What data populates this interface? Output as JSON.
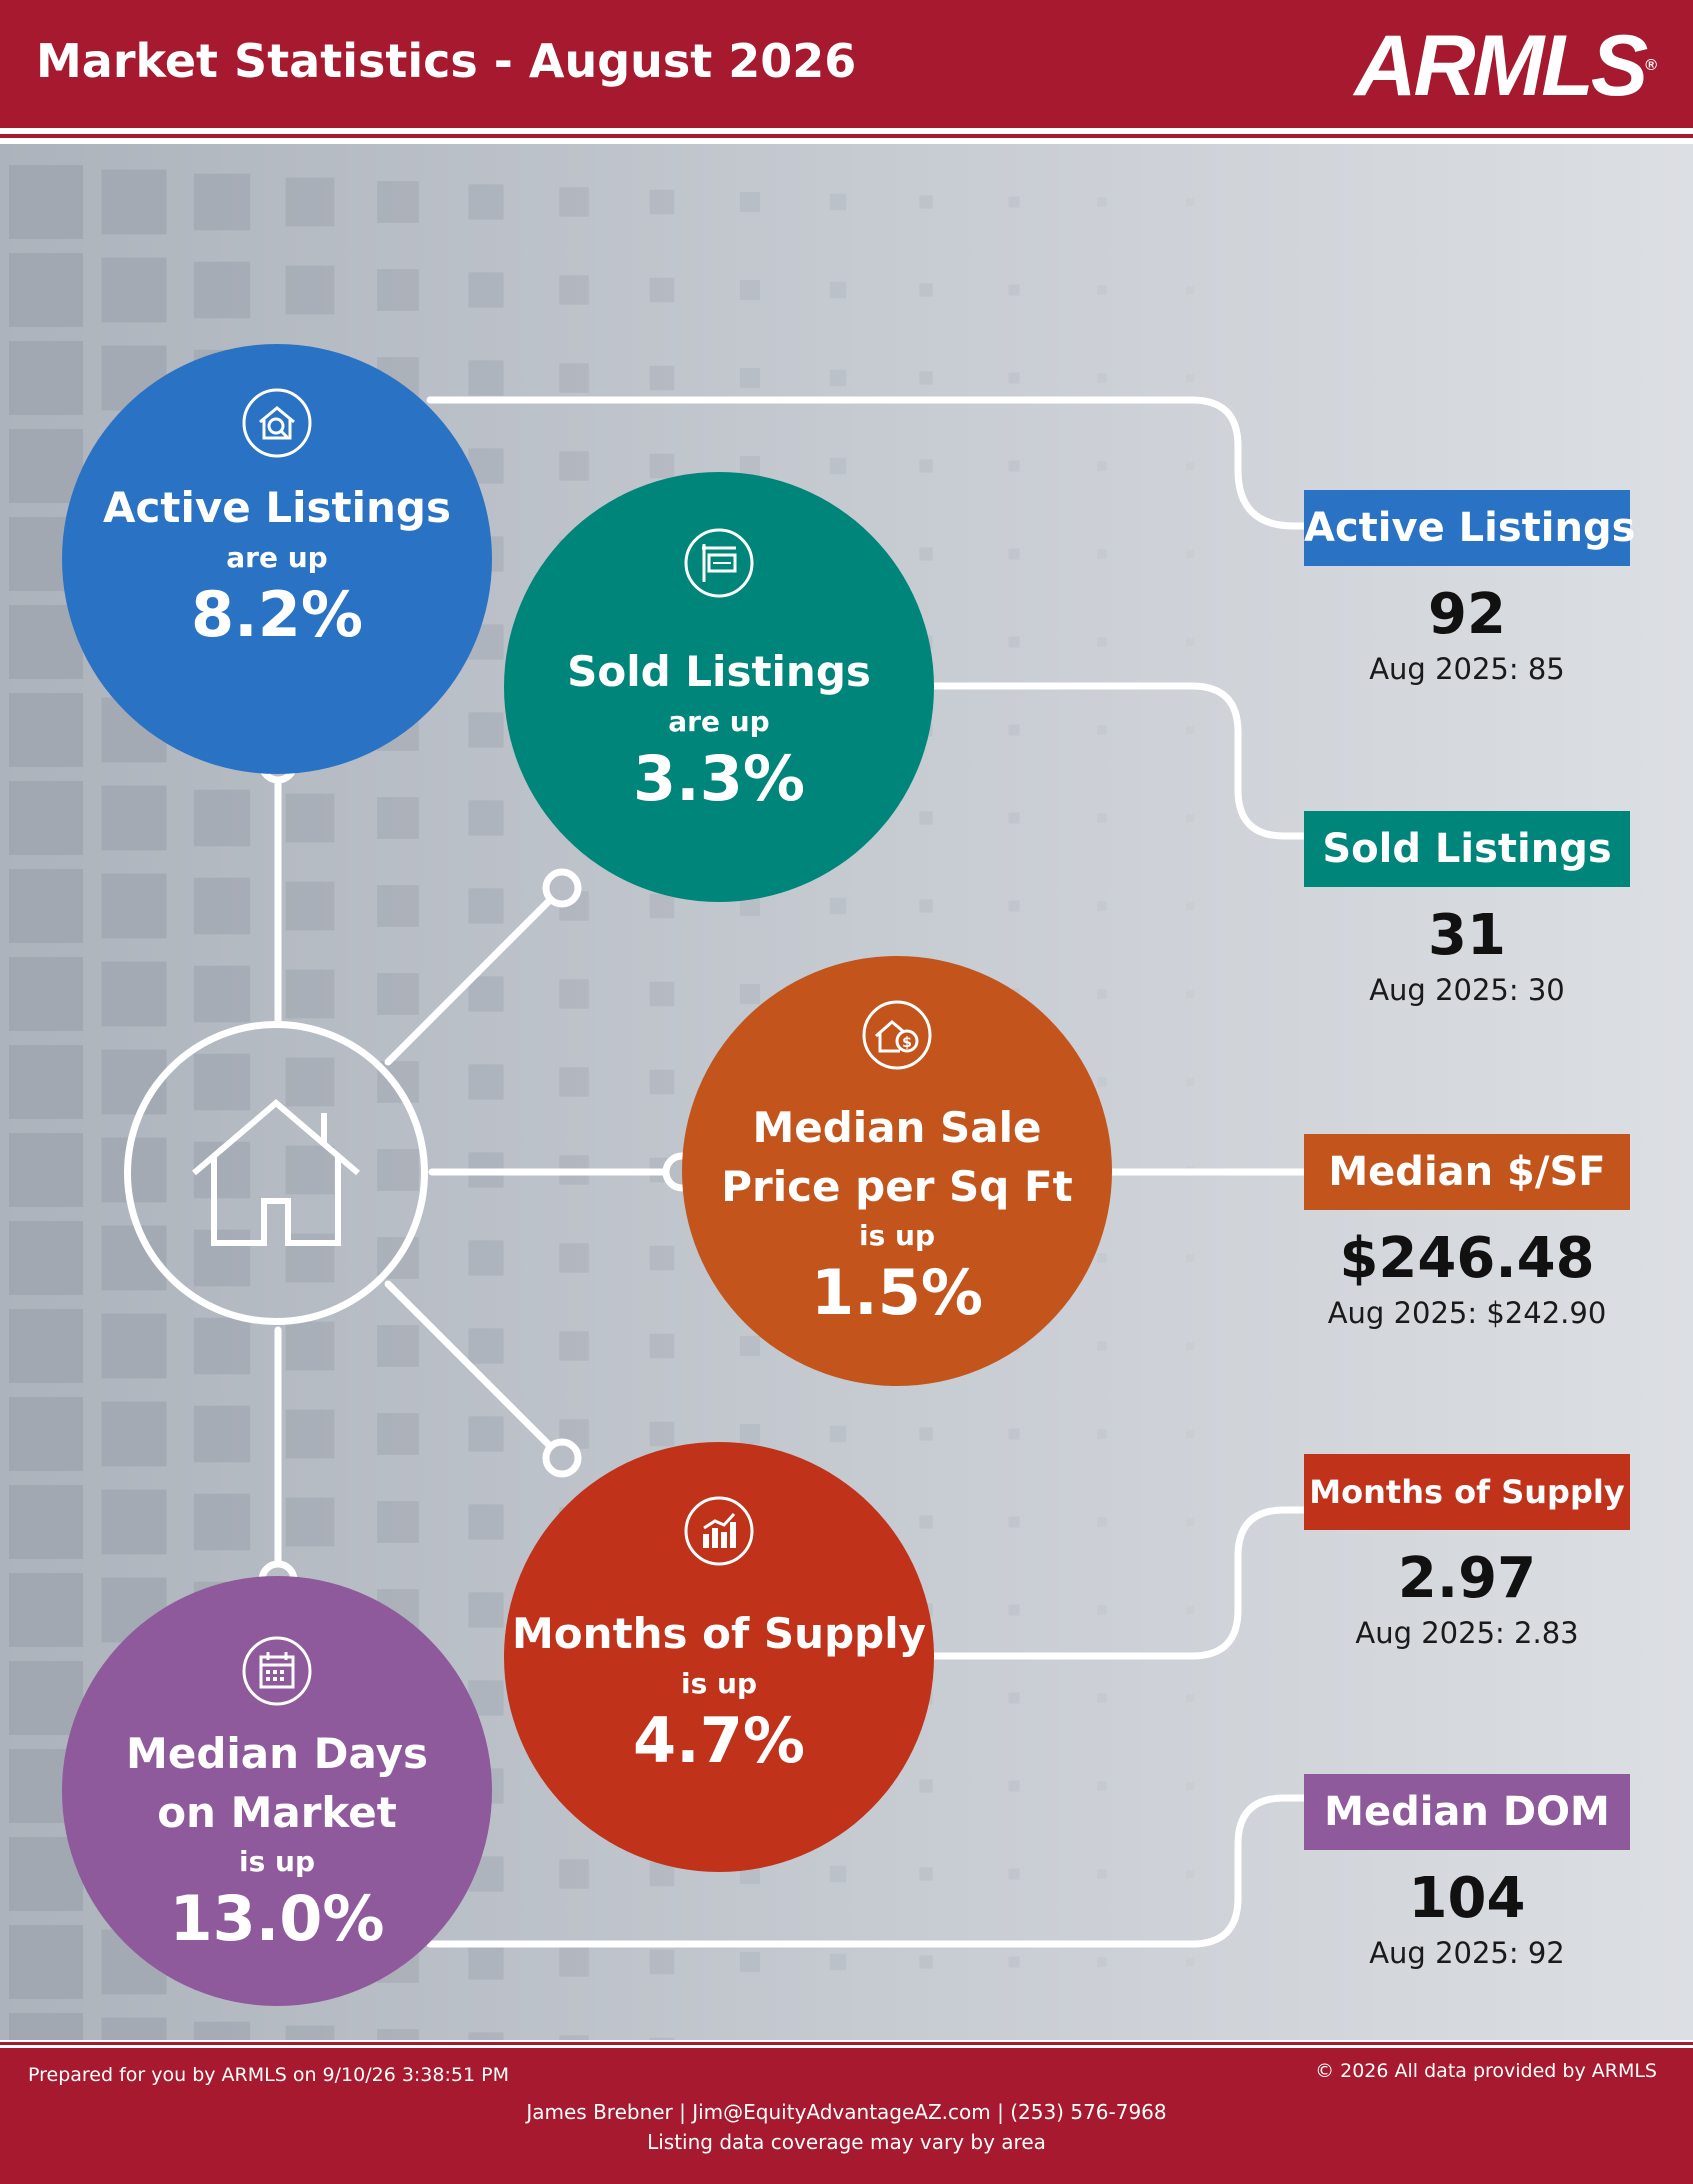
{
  "header": {
    "title": "Market Statistics - August 2026",
    "logo_text": "ARMLS",
    "logo_mark": "®"
  },
  "circles": {
    "active": {
      "title": "Active Listings",
      "sub": "are up",
      "pct": "8.2%",
      "color": "#2a72c4",
      "icon": "house-search-icon"
    },
    "sold": {
      "title": "Sold Listings",
      "sub": "are up",
      "pct": "3.3%",
      "color": "#00857a",
      "icon": "sold-sign-icon"
    },
    "price": {
      "title_line1": "Median Sale",
      "title_line2": "Price per Sq Ft",
      "sub": "is up",
      "pct": "1.5%",
      "color": "#c2541c",
      "icon": "house-dollar-icon"
    },
    "supply": {
      "title": "Months of Supply",
      "sub": "is up",
      "pct": "4.7%",
      "color": "#c0321a",
      "icon": "bar-chart-icon"
    },
    "dom": {
      "title_line1": "Median Days",
      "title_line2": "on Market",
      "sub": "is up",
      "pct": "13.0%",
      "color": "#8e5a9c",
      "icon": "calendar-icon"
    }
  },
  "stats": {
    "active": {
      "label": "Active Listings",
      "value": "92",
      "prev": "Aug 2025: 85",
      "color": "#2a72c4"
    },
    "sold": {
      "label": "Sold Listings",
      "value": "31",
      "prev": "Aug 2025: 30",
      "color": "#00857a"
    },
    "price": {
      "label": "Median $/SF",
      "value": "$246.48",
      "prev": "Aug 2025: $242.90",
      "color": "#c2541c"
    },
    "supply": {
      "label": "Months of Supply",
      "value": "2.97",
      "prev": "Aug 2025: 2.83",
      "color": "#c0321a"
    },
    "dom": {
      "label": "Median DOM",
      "value": "104",
      "prev": "Aug 2025: 92",
      "color": "#8e5a9c"
    }
  },
  "footer": {
    "prepared": "Prepared for you by ARMLS on 9/10/26 3:38:51 PM",
    "copyright": "© 2026 All data provided by ARMLS",
    "contact": "James Brebner | Jim@EquityAdvantageAZ.com | (253) 576-7968",
    "coverage": "Listing data coverage may vary by area"
  }
}
